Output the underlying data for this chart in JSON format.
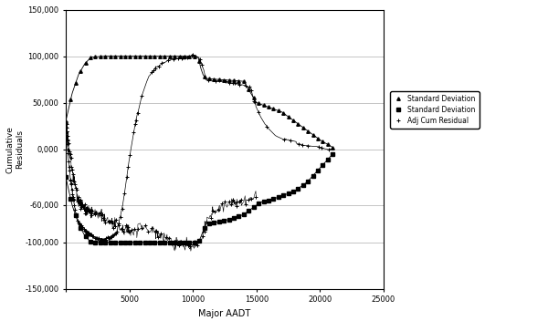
{
  "title": "",
  "xlabel": "Major AADT",
  "ylabel": "Cumulative\nResiduals",
  "xlim": [
    0,
    25000
  ],
  "ylim": [
    -150000,
    150000
  ],
  "xticks": [
    0,
    5000,
    10000,
    15000,
    20000,
    25000
  ],
  "xtick_labels": [
    "0",
    "5000",
    "10000",
    "15000",
    "20000",
    "25000"
  ],
  "yticks": [
    -150000,
    -100000,
    -60000,
    0,
    50000,
    100000,
    150000
  ],
  "ytick_labels": [
    "-150,000",
    "-100,000",
    "-60,000",
    "0,000",
    "50,000",
    "100,000",
    "150,000"
  ],
  "legend_labels": [
    "Adj Cum Residual",
    "Standard Deviation",
    "Standard Deviation"
  ],
  "line_color": "#000000",
  "background_color": "#ffffff",
  "grid_color": "#999999",
  "figsize": [
    6.0,
    3.52
  ],
  "dpi": 100
}
